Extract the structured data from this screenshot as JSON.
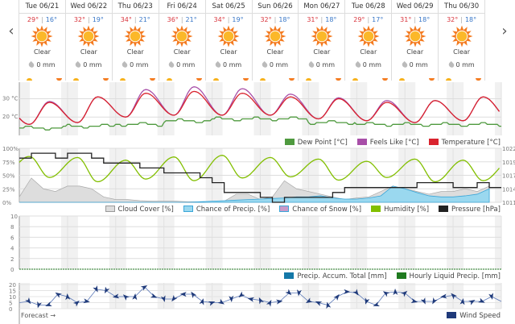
{
  "nav": {
    "prev": "‹",
    "next": "›"
  },
  "days": [
    {
      "name": "Tue 06/21",
      "hi": "29°",
      "lo": "16°",
      "cond": "Clear",
      "precip": "0 mm"
    },
    {
      "name": "Wed 06/22",
      "hi": "32°",
      "lo": "19°",
      "cond": "Clear",
      "precip": "0 mm"
    },
    {
      "name": "Thu 06/23",
      "hi": "34°",
      "lo": "21°",
      "cond": "Clear",
      "precip": "0 mm"
    },
    {
      "name": "Fri 06/24",
      "hi": "36°",
      "lo": "21°",
      "cond": "Clear",
      "precip": "0 mm"
    },
    {
      "name": "Sat 06/25",
      "hi": "34°",
      "lo": "19°",
      "cond": "Clear",
      "precip": "0 mm"
    },
    {
      "name": "Sun 06/26",
      "hi": "32°",
      "lo": "18°",
      "cond": "Clear",
      "precip": "0 mm"
    },
    {
      "name": "Mon 06/27",
      "hi": "31°",
      "lo": "18°",
      "cond": "Clear",
      "precip": "0 mm"
    },
    {
      "name": "Tue 06/28",
      "hi": "29°",
      "lo": "17°",
      "cond": "Clear",
      "precip": "0 mm"
    },
    {
      "name": "Wed 06/29",
      "hi": "31°",
      "lo": "18°",
      "cond": "Clear",
      "precip": "0 mm"
    },
    {
      "name": "Thu 06/30",
      "hi": "32°",
      "lo": "18°",
      "cond": "Clear",
      "precip": "0 mm"
    }
  ],
  "colors": {
    "temp": "#d9232e",
    "feels": "#a84fa8",
    "dew": "#4f9a3f",
    "humidity": "#82bf00",
    "pressure": "#222222",
    "cloud": "#cccccc",
    "precipChance": "#67c1e2",
    "wind": "#1f3a7a"
  },
  "chart_data": [
    {
      "type": "line",
      "title": "Temperature",
      "ylim": [
        10,
        39
      ],
      "yticks": [
        "30 °C",
        "20 °C"
      ],
      "ytickvals": [
        30,
        20
      ],
      "legend": [
        "Dew Point [°C]",
        "Feels Like [°C]",
        "Temperature [°C]"
      ],
      "temp_low": [
        16,
        17,
        20,
        21,
        21,
        21,
        19,
        18,
        17,
        18
      ],
      "temp_high": [
        28,
        31,
        33,
        34,
        33,
        31,
        30,
        28,
        29,
        31
      ],
      "feels_high": [
        28.5,
        31,
        35,
        36.5,
        35.5,
        32.5,
        30.5,
        29,
        29,
        31
      ],
      "dew": [
        14,
        15,
        16,
        18,
        19,
        19,
        17,
        16,
        16,
        16
      ]
    },
    {
      "type": "line",
      "title": "Humidity / Pressure",
      "ylim": [
        0,
        100
      ],
      "yticks": [
        "100%",
        "75%",
        "50%",
        "25%",
        "0%"
      ],
      "y2ticks": [
        "1022",
        "1019",
        "1017",
        "1014",
        "1011"
      ],
      "legend": [
        "Cloud Cover [%]",
        "Chance of Precip. [%]",
        "Chance of Snow [%]",
        "Humidity [%]",
        "Pressure [hPa]"
      ],
      "hum_max": [
        85,
        83,
        78,
        84,
        87,
        83,
        80,
        76,
        80,
        78
      ],
      "hum_min": [
        46,
        38,
        43,
        40,
        45,
        47,
        41,
        46,
        38,
        40
      ],
      "pressure_6h": [
        1020,
        1021,
        1021,
        1020,
        1021,
        1021,
        1020,
        1019,
        1019,
        1019,
        1018,
        1018,
        1017,
        1017,
        1017,
        1016,
        1015,
        1013,
        1013,
        1013,
        1012,
        1011,
        1012,
        1012,
        1012,
        1012,
        1013,
        1014,
        1014,
        1014,
        1014,
        1014,
        1014,
        1015,
        1015,
        1015,
        1014,
        1014,
        1015,
        1014
      ],
      "cloud_6h": [
        10,
        45,
        25,
        20,
        30,
        30,
        25,
        10,
        5,
        5,
        3,
        2,
        2,
        2,
        1,
        1,
        1,
        2,
        15,
        15,
        5,
        10,
        40,
        25,
        20,
        15,
        10,
        5,
        8,
        10,
        20,
        30,
        25,
        20,
        15,
        20,
        20,
        25,
        20,
        30
      ],
      "precip_chance_6h": [
        0,
        0,
        0,
        0,
        0,
        0,
        0,
        0,
        0,
        0,
        0,
        0,
        0,
        0,
        0,
        1,
        2,
        3,
        4,
        5,
        6,
        7,
        8,
        10,
        10,
        12,
        8,
        6,
        6,
        8,
        12,
        30,
        25,
        18,
        12,
        10,
        10,
        12,
        15,
        25
      ]
    },
    {
      "type": "line",
      "title": "Precipitation",
      "ylim": [
        0,
        10
      ],
      "yticks": [
        "10",
        "8",
        "6",
        "4",
        "2",
        "0"
      ],
      "legend": [
        "Precip. Accum. Total [mm]",
        "Hourly Liquid Precip. [mm]"
      ],
      "values": [
        0,
        0,
        0,
        0,
        0,
        0,
        0,
        0,
        0,
        0
      ]
    },
    {
      "type": "line",
      "title": "Wind Speed",
      "ylim": [
        0,
        20
      ],
      "yticks": [
        "20",
        "15",
        "10",
        "5",
        "0"
      ],
      "legend": [
        "Wind Speed"
      ],
      "wind_6h": [
        5,
        6,
        3,
        3,
        12,
        10,
        5,
        6,
        16,
        15,
        10,
        10,
        10,
        18,
        10,
        8,
        8,
        12,
        12,
        6,
        5,
        5,
        8,
        11,
        8,
        7,
        5,
        6,
        13,
        13,
        6,
        5,
        3,
        10,
        14,
        13,
        6,
        3,
        13,
        14,
        13,
        6,
        6,
        6,
        10,
        11,
        6,
        6,
        6,
        10,
        6
      ]
    }
  ],
  "footer": {
    "forecast": "Forecast →"
  }
}
